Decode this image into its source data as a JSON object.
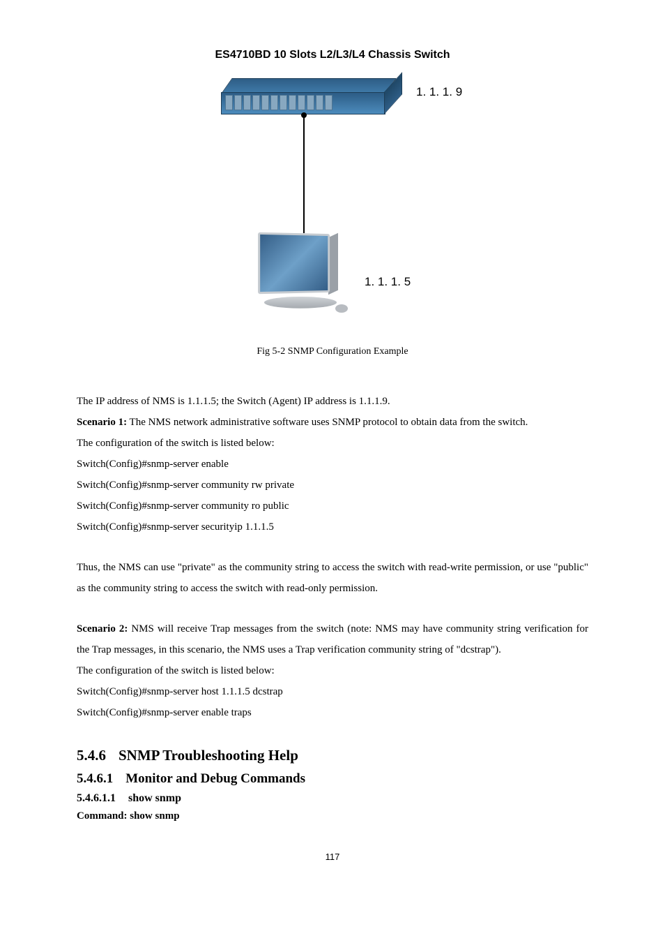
{
  "header": {
    "title": "ES4710BD 10 Slots L2/L3/L4 Chassis Switch"
  },
  "diagram": {
    "switch_ip": "1. 1. 1. 9",
    "host_ip": "1. 1. 1. 5"
  },
  "fig_caption": "Fig 5-2 SNMP Configuration Example",
  "body": {
    "intro": "The IP address of NMS is 1.1.1.5; the Switch (Agent) IP address is 1.1.1.9.",
    "scenario1_label": "Scenario 1:",
    "scenario1_text": " The NMS network administrative software uses SNMP protocol to obtain data from the switch.",
    "config_intro": "The configuration of the switch is listed below:",
    "cfg1": "Switch(Config)#snmp-server enable",
    "cfg2": "Switch(Config)#snmp-server community rw private",
    "cfg3": "Switch(Config)#snmp-server community ro public",
    "cfg4": "Switch(Config)#snmp-server securityip 1.1.1.5",
    "thus": "Thus, the NMS can use \"private\" as the community string to access the switch with read-write permission, or use \"public\" as the community string to access the switch with read-only permission.",
    "scenario2_label": "Scenario 2:",
    "scenario2_text": " NMS will receive Trap messages from the switch (note: NMS may have community string verification for the Trap messages, in this scenario, the NMS uses a Trap verification community string of \"dcstrap\").",
    "config_intro2": "The configuration of the switch is listed below:",
    "cfg5": "Switch(Config)#snmp-server host 1.1.1.5 dcstrap",
    "cfg6": "Switch(Config)#snmp-server enable traps"
  },
  "headings": {
    "h2_num": "5.4.6",
    "h2_text": "SNMP Troubleshooting Help",
    "h3_num": "5.4.6.1",
    "h3_text": "Monitor and Debug Commands",
    "h4_num": "5.4.6.1.1",
    "h4_text": "show snmp"
  },
  "command": {
    "label": "Command: show snmp"
  },
  "pagenum": "117"
}
